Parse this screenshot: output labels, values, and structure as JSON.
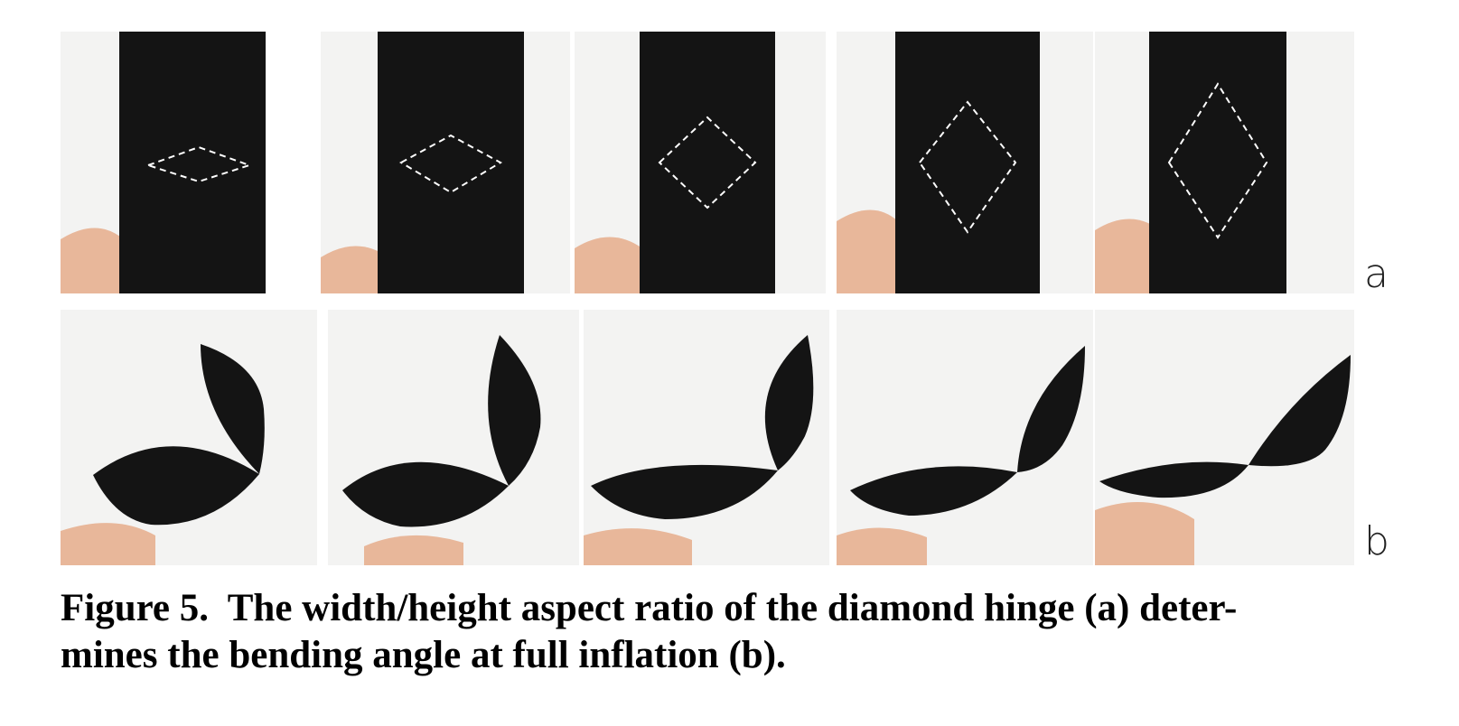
{
  "figure": {
    "row_labels": {
      "a": "a",
      "b": "b"
    },
    "caption_line1": "Figure 5.  The width/height aspect ratio of the diamond hinge (a) deter-",
    "caption_line2": "mines the bending angle at full inflation (b)."
  },
  "colors": {
    "fabric": "#141414",
    "background": "#f3f3f2",
    "skin": "#e8b79a",
    "stitch": "#ffffff"
  }
}
